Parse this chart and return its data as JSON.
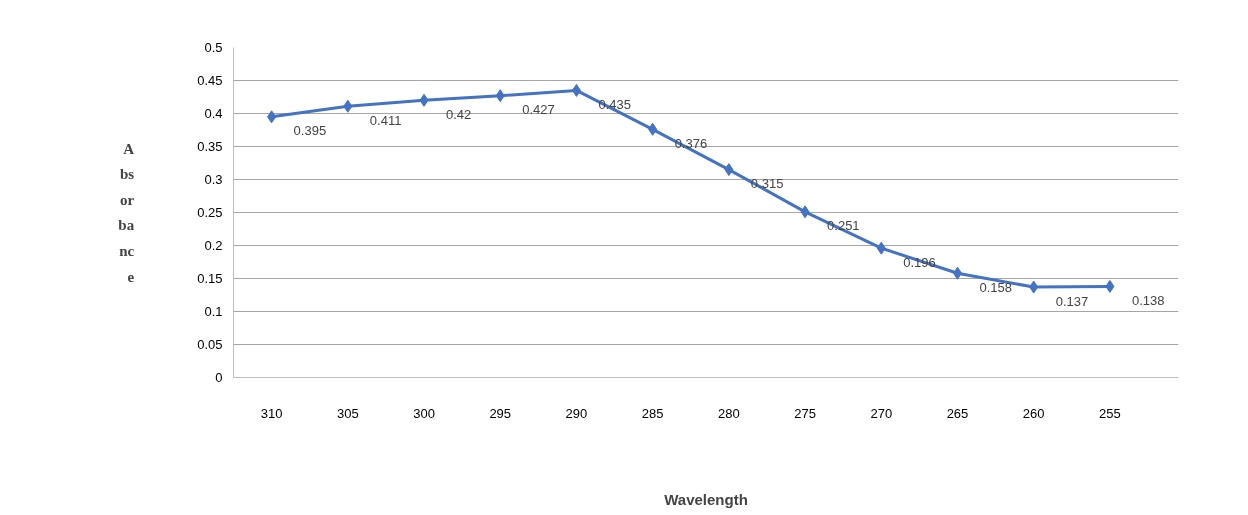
{
  "chart_data": {
    "type": "line",
    "xlabel": "Wavelength",
    "ylabel": "Absorbance",
    "categories": [
      "310",
      "305",
      "300",
      "295",
      "290",
      "285",
      "280",
      "275",
      "270",
      "265",
      "260",
      "255"
    ],
    "series": [
      {
        "color": "#4472c4",
        "values": [
          0.395,
          0.411,
          0.42,
          0.427,
          0.435,
          0.376,
          0.315,
          0.251,
          0.196,
          0.158,
          0.137,
          0.138
        ]
      }
    ],
    "ylim": [
      0,
      0.5
    ],
    "yticks": [
      0,
      0.05,
      0.1,
      0.15,
      0.2,
      0.25,
      0.3,
      0.35,
      0.4,
      0.45,
      0.5
    ],
    "grid": "y",
    "marker": "diamond",
    "line_style": "solid",
    "data_labels": true
  }
}
